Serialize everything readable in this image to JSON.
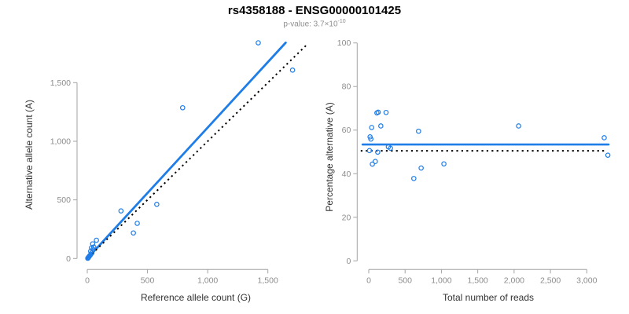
{
  "header": {
    "title": "rs4358188 - ENSG00000101425",
    "pvalue_label": "p-value: 3.7×10",
    "pvalue_exponent": "-10"
  },
  "colors": {
    "accent_blue": "#1F7DE8",
    "dotted_black": "#000000",
    "axis_gray": "#A3A3A3",
    "tick_label_gray": "#8C8C8C",
    "axis_title_dark": "#333333",
    "title_black": "#000000",
    "subtitle_gray": "#8F8F8F",
    "background": "#FFFFFF"
  },
  "chart_data": [
    {
      "type": "scatter",
      "name": "allele-counts-plot",
      "xlabel": "Reference allele count (G)",
      "ylabel": "Alternative allele count (A)",
      "xlim": [
        0,
        1500
      ],
      "ylim": [
        0,
        1500
      ],
      "grid": false,
      "xticks": [
        {
          "v": 0,
          "label": "0"
        },
        {
          "v": 500,
          "label": "500"
        },
        {
          "v": 1000,
          "label": "1,000"
        },
        {
          "v": 1500,
          "label": "1,500"
        }
      ],
      "yticks": [
        {
          "v": 0,
          "label": "0"
        },
        {
          "v": 500,
          "label": "500"
        },
        {
          "v": 1000,
          "label": "1,000"
        },
        {
          "v": 1500,
          "label": "1,500"
        }
      ],
      "points": [
        [
          1420,
          1840
        ],
        [
          1705,
          1607
        ],
        [
          792,
          1286
        ],
        [
          577,
          462
        ],
        [
          280,
          406
        ],
        [
          415,
          300
        ],
        [
          383,
          218
        ],
        [
          76,
          156
        ],
        [
          45,
          125
        ],
        [
          54,
          98
        ],
        [
          35,
          91
        ],
        [
          48,
          78
        ],
        [
          28,
          62
        ],
        [
          39,
          49
        ],
        [
          30,
          36
        ],
        [
          22,
          26
        ],
        [
          16,
          18
        ],
        [
          10,
          10
        ],
        [
          7,
          5
        ],
        [
          4,
          2
        ]
      ],
      "lines": [
        {
          "name": "regression-line",
          "style": "solid",
          "color_key": "accent_blue",
          "width": 2.8,
          "points": [
            [
              0,
              0
            ],
            [
              1648,
              1841
            ]
          ]
        },
        {
          "name": "identity-line",
          "style": "dotted",
          "color_key": "dotted_black",
          "width": 2,
          "points": [
            [
              10,
              10
            ],
            [
              1822,
              1822
            ]
          ]
        }
      ]
    },
    {
      "type": "scatter",
      "name": "percentage-vs-reads-plot",
      "xlabel": "Total number of reads",
      "ylabel": "Percentage alternative (A)",
      "xlim": [
        0,
        3000
      ],
      "ylim": [
        0,
        100
      ],
      "grid": false,
      "xticks": [
        {
          "v": 0,
          "label": "0"
        },
        {
          "v": 500,
          "label": "500"
        },
        {
          "v": 1000,
          "label": "1,000"
        },
        {
          "v": 1500,
          "label": "1,500"
        },
        {
          "v": 2000,
          "label": "2,000"
        },
        {
          "v": 2500,
          "label": "2,500"
        },
        {
          "v": 3000,
          "label": "3,000"
        }
      ],
      "yticks": [
        {
          "v": 0,
          "label": "0"
        },
        {
          "v": 20,
          "label": "20"
        },
        {
          "v": 40,
          "label": "40"
        },
        {
          "v": 60,
          "label": "60"
        },
        {
          "v": 80,
          "label": "80"
        },
        {
          "v": 100,
          "label": "100"
        }
      ],
      "points": [
        [
          10,
          50.6
        ],
        [
          18,
          56.9
        ],
        [
          29,
          55.9
        ],
        [
          40,
          61.2
        ],
        [
          50,
          44.4
        ],
        [
          90,
          45.6
        ],
        [
          112,
          67.9
        ],
        [
          123,
          49.9
        ],
        [
          130,
          68.2
        ],
        [
          166,
          61.9
        ],
        [
          238,
          68.1
        ],
        [
          270,
          52.3
        ],
        [
          299,
          51.7
        ],
        [
          620,
          37.8
        ],
        [
          685,
          59.5
        ],
        [
          721,
          42.6
        ],
        [
          1034,
          44.5
        ],
        [
          2062,
          61.9
        ],
        [
          3240,
          56.5
        ],
        [
          3290,
          48.5
        ]
      ],
      "lines": [
        {
          "name": "regression-line",
          "style": "solid",
          "color_key": "accent_blue",
          "width": 2.6,
          "points": [
            [
              -85,
              53.4
            ],
            [
              3300,
              53.4
            ]
          ]
        },
        {
          "name": "expected-50pct-line",
          "style": "dotted",
          "color_key": "dotted_black",
          "width": 2,
          "points": [
            [
              -110,
              50.5
            ],
            [
              3245,
              50.5
            ]
          ]
        }
      ]
    }
  ]
}
